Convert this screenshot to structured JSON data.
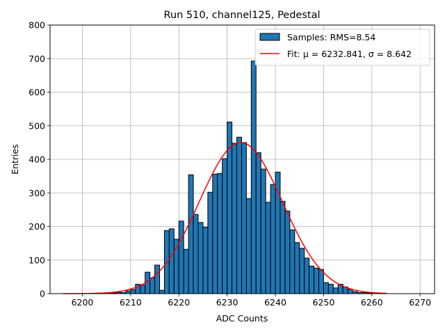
{
  "chart_data": {
    "type": "bar",
    "title": "Run 510, channel125, Pedestal",
    "xlabel": "ADC Counts",
    "ylabel": "Entries",
    "xlim": [
      6193.3,
      6273.0
    ],
    "ylim": [
      0,
      800
    ],
    "xticks": [
      6200,
      6210,
      6220,
      6230,
      6240,
      6250,
      6260,
      6270
    ],
    "yticks": [
      0,
      100,
      200,
      300,
      400,
      500,
      600,
      700,
      800
    ],
    "grid": true,
    "legend_position": "top-right",
    "bin_width": 1,
    "histogram": {
      "name": "Samples: RMS=8.54",
      "color": "#1f77b4",
      "bins": [
        [
          6203,
          2
        ],
        [
          6204,
          1
        ],
        [
          6205,
          3
        ],
        [
          6206,
          2
        ],
        [
          6207,
          4
        ],
        [
          6208,
          3
        ],
        [
          6209,
          8
        ],
        [
          6210,
          12
        ],
        [
          6211,
          28
        ],
        [
          6212,
          25
        ],
        [
          6213,
          64
        ],
        [
          6214,
          47
        ],
        [
          6215,
          85
        ],
        [
          6216,
          10
        ],
        [
          6217,
          188
        ],
        [
          6218,
          193
        ],
        [
          6219,
          162
        ],
        [
          6220,
          216
        ],
        [
          6221,
          132
        ],
        [
          6222,
          354
        ],
        [
          6223,
          236
        ],
        [
          6224,
          212
        ],
        [
          6225,
          198
        ],
        [
          6226,
          302
        ],
        [
          6227,
          356
        ],
        [
          6228,
          358
        ],
        [
          6229,
          402
        ],
        [
          6230,
          511
        ],
        [
          6231,
          448
        ],
        [
          6232,
          466
        ],
        [
          6233,
          450
        ],
        [
          6234,
          283
        ],
        [
          6235,
          693
        ],
        [
          6236,
          420
        ],
        [
          6237,
          371
        ],
        [
          6238,
          272
        ],
        [
          6239,
          325
        ],
        [
          6240,
          362
        ],
        [
          6241,
          275
        ],
        [
          6242,
          246
        ],
        [
          6243,
          190
        ],
        [
          6244,
          152
        ],
        [
          6245,
          135
        ],
        [
          6246,
          106
        ],
        [
          6247,
          82
        ],
        [
          6248,
          76
        ],
        [
          6249,
          72
        ],
        [
          6250,
          33
        ],
        [
          6251,
          28
        ],
        [
          6252,
          17
        ],
        [
          6253,
          28
        ],
        [
          6254,
          20
        ],
        [
          6255,
          13
        ],
        [
          6256,
          6
        ],
        [
          6257,
          3
        ],
        [
          6258,
          3
        ],
        [
          6259,
          2
        ],
        [
          6260,
          2
        ],
        [
          6261,
          1
        ],
        [
          6262,
          1
        ]
      ]
    },
    "fit": {
      "name": "Fit: μ = 6232.841, σ = 8.642",
      "color": "#ff0000",
      "mu": 6232.841,
      "sigma": 8.642,
      "amplitude": 450,
      "x_range": [
        6196,
        6263
      ]
    }
  }
}
